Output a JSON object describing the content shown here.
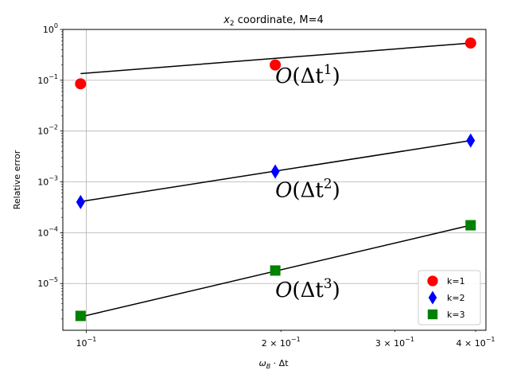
{
  "chart_data": {
    "type": "scatter",
    "title": {
      "var": "x",
      "sub": "2",
      "rest": " coordinate, M=4"
    },
    "xlabel": {
      "omega": "ω",
      "sub": "B",
      "rest": " · Δt"
    },
    "ylabel": "Relative error",
    "xscale": "log",
    "yscale": "log",
    "xlim": [
      0.092,
      0.415
    ],
    "ylim": [
      1.2e-06,
      1.0
    ],
    "grid": true,
    "legend_position": "bottom-right",
    "x_ticks": [
      {
        "value": 0.1,
        "base": "10",
        "exp": "−1"
      },
      {
        "value": 0.2,
        "base": "2 × 10",
        "exp": "−1"
      },
      {
        "value": 0.3,
        "base": "3 × 10",
        "exp": "−1"
      },
      {
        "value": 0.4,
        "base": "4 × 10",
        "exp": "−1"
      }
    ],
    "y_ticks": [
      {
        "value": 1e-05,
        "base": "10",
        "exp": "−5"
      },
      {
        "value": 0.0001,
        "base": "10",
        "exp": "−4"
      },
      {
        "value": 0.001,
        "base": "10",
        "exp": "−3"
      },
      {
        "value": 0.01,
        "base": "10",
        "exp": "−2"
      },
      {
        "value": 0.1,
        "base": "10",
        "exp": "−1"
      },
      {
        "value": 1.0,
        "base": "10",
        "exp": "0"
      }
    ],
    "series": [
      {
        "name": "k=1",
        "marker": "circle",
        "color": "#ff0000",
        "x": [
          0.098,
          0.196,
          0.393
        ],
        "y": [
          0.085,
          0.2,
          0.54
        ],
        "fit": {
          "x": [
            0.098,
            0.393
          ],
          "y": [
            0.135,
            0.54
          ]
        },
        "annotation": {
          "text": "Δt",
          "exp": "1",
          "x": 0.196,
          "y": 0.09
        }
      },
      {
        "name": "k=2",
        "marker": "diamond",
        "color": "#0000ff",
        "x": [
          0.098,
          0.196,
          0.393
        ],
        "y": [
          0.0004,
          0.0016,
          0.0065
        ],
        "fit": {
          "x": [
            0.098,
            0.393
          ],
          "y": [
            0.00041,
            0.0065
          ]
        },
        "annotation": {
          "text": "Δt",
          "exp": "2",
          "x": 0.196,
          "y": 0.0005
        }
      },
      {
        "name": "k=3",
        "marker": "square",
        "color": "#008000",
        "x": [
          0.098,
          0.196,
          0.393
        ],
        "y": [
          2.3e-06,
          1.8e-05,
          0.00014
        ],
        "fit": {
          "x": [
            0.098,
            0.393
          ],
          "y": [
            2.2e-06,
            0.00014
          ]
        },
        "annotation": {
          "text": "Δt",
          "exp": "3",
          "x": 0.196,
          "y": 5.5e-06
        }
      }
    ]
  }
}
